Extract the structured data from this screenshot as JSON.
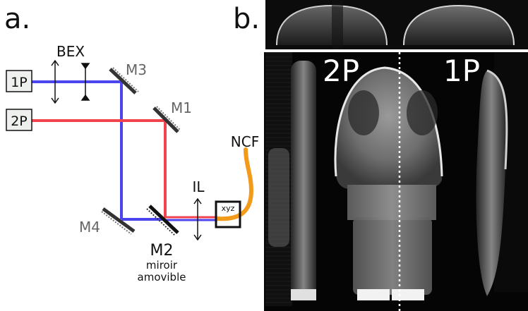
{
  "panel_a": {
    "panel_label": "a.",
    "sources": [
      {
        "label": "1P",
        "beam_color": "#4b45ef"
      },
      {
        "label": "2P",
        "beam_color": "#f0434e"
      }
    ],
    "beam_expander_label": "BEX",
    "mirrors": [
      {
        "label": "M1"
      },
      {
        "label": "M2"
      },
      {
        "label": "M3"
      },
      {
        "label": "M4"
      }
    ],
    "movable_mirror_caption_line1": "miroir",
    "movable_mirror_caption_line2": "amovible",
    "injection_lens_label": "IL",
    "stage_label": "xyz",
    "fiber_label": "NCF",
    "fiber_color": "#f39a1a",
    "mirror_label_color": "#666666"
  },
  "panel_b": {
    "panel_label": "b.",
    "left_half_label": "2P",
    "right_half_label": "1P",
    "divider_style": "dotted white"
  }
}
